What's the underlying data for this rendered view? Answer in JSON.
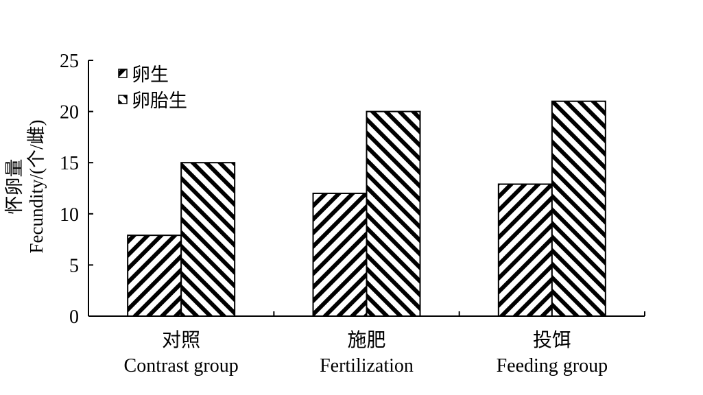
{
  "chart_data": {
    "type": "bar",
    "title": "",
    "ylabel_cn": "怀卵量",
    "ylabel_en": "Fecundity/(个/雌)",
    "xlabel": "",
    "ylim": [
      0,
      25
    ],
    "yticks": [
      0,
      5,
      10,
      15,
      20,
      25
    ],
    "legend_position": "top-left",
    "grid": false,
    "categories": [
      {
        "cn": "对照",
        "en": "Contrast group"
      },
      {
        "cn": "施肥",
        "en": "Fertilization"
      },
      {
        "cn": "投饵",
        "en": "Feeding group"
      }
    ],
    "series": [
      {
        "name": "卵生",
        "pattern": "hatch-forward",
        "values": [
          7.9,
          12.0,
          12.9
        ]
      },
      {
        "name": "卵胎生",
        "pattern": "hatch-back",
        "values": [
          15.0,
          20.0,
          21.0
        ]
      }
    ]
  }
}
